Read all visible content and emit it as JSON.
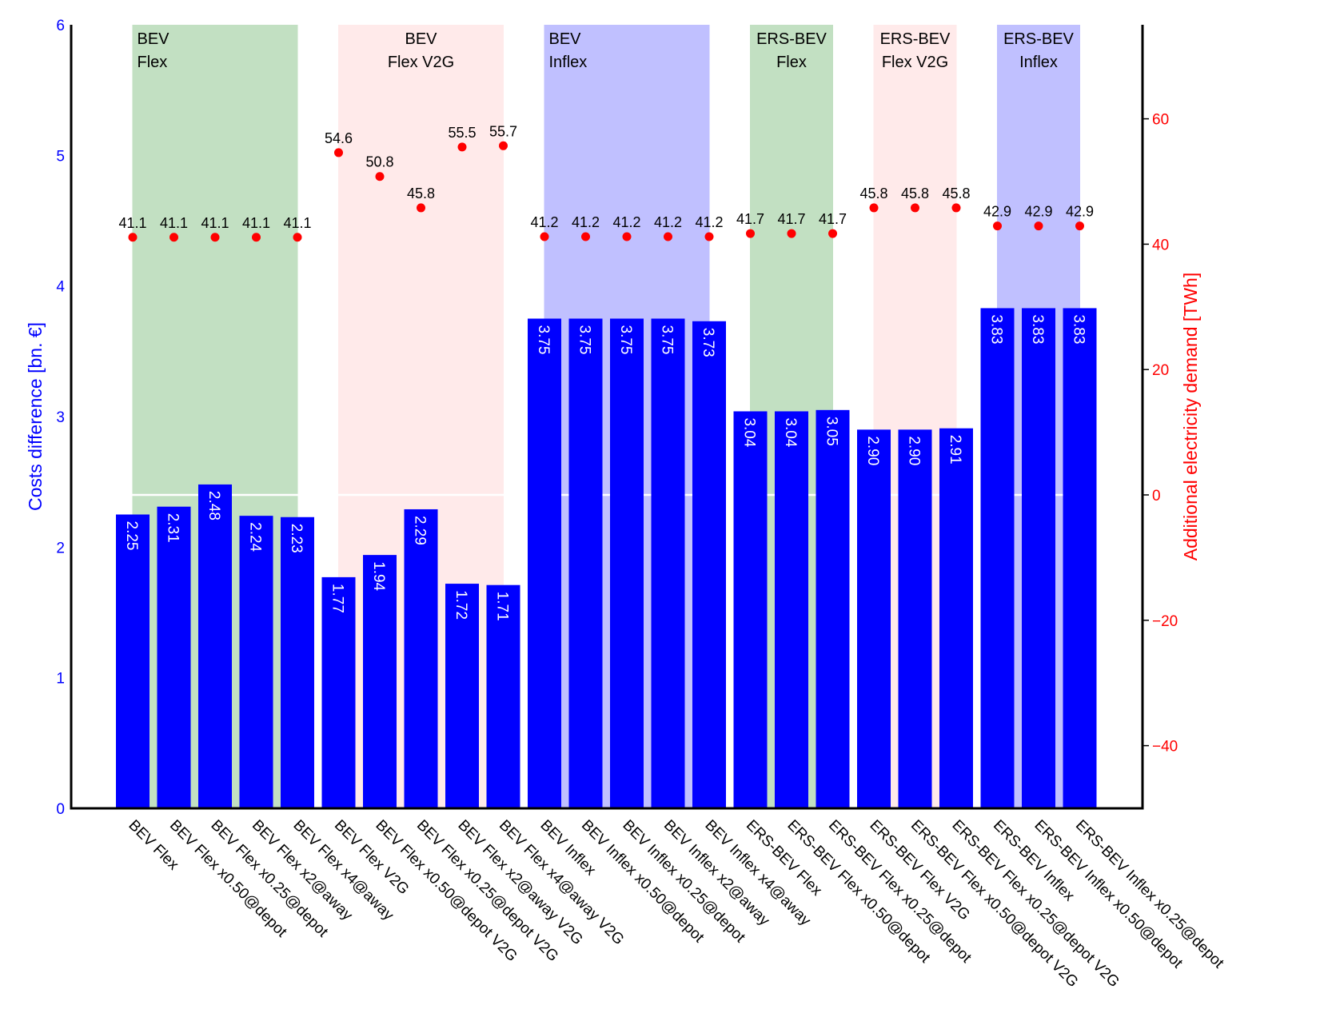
{
  "chart_data": {
    "type": "bar",
    "categories": [
      "BEV Flex",
      "BEV Flex x0.50@depot",
      "BEV Flex x0.25@depot",
      "BEV Flex x2@away",
      "BEV Flex x4@away",
      "BEV Flex V2G",
      "BEV Flex x0.50@depot V2G",
      "BEV Flex x0.25@depot V2G",
      "BEV Flex x2@away V2G",
      "BEV Flex x4@away V2G",
      "BEV Inflex",
      "BEV Inflex x0.50@depot",
      "BEV Inflex x0.25@depot",
      "BEV Inflex x2@away",
      "BEV Inflex x4@away",
      "ERS-BEV Flex",
      "ERS-BEV Flex x0.50@depot",
      "ERS-BEV Flex x0.25@depot",
      "ERS-BEV Flex V2G",
      "ERS-BEV Flex x0.50@depot V2G",
      "ERS-BEV Flex x0.25@depot V2G",
      "ERS-BEV Inflex",
      "ERS-BEV Inflex x0.50@depot",
      "ERS-BEV Inflex x0.25@depot"
    ],
    "series": [
      {
        "name": "Costs difference",
        "axis": "left",
        "color": "#0000ff",
        "kind": "bar",
        "values": [
          2.25,
          2.31,
          2.48,
          2.24,
          2.23,
          1.77,
          1.94,
          2.29,
          1.72,
          1.71,
          3.75,
          3.75,
          3.75,
          3.75,
          3.73,
          3.04,
          3.04,
          3.05,
          2.9,
          2.9,
          2.91,
          3.83,
          3.83,
          3.83
        ],
        "labels": [
          "2.25",
          "2.31",
          "2.48",
          "2.24",
          "2.23",
          "1.77",
          "1.94",
          "2.29",
          "1.72",
          "1.71",
          "3.75",
          "3.75",
          "3.75",
          "3.75",
          "3.73",
          "3.04",
          "3.04",
          "3.05",
          "2.90",
          "2.90",
          "2.91",
          "3.83",
          "3.83",
          "3.83"
        ]
      },
      {
        "name": "Additional electricity demand",
        "axis": "right",
        "color": "#ff0000",
        "kind": "scatter",
        "values": [
          41.1,
          41.1,
          41.1,
          41.1,
          41.1,
          54.6,
          50.8,
          45.8,
          55.5,
          55.7,
          41.2,
          41.2,
          41.2,
          41.2,
          41.2,
          41.7,
          41.7,
          41.7,
          45.8,
          45.8,
          45.8,
          42.9,
          42.9,
          42.9
        ],
        "labels": [
          "41.1",
          "41.1",
          "41.1",
          "41.1",
          "41.1",
          "54.6",
          "50.8",
          "45.8",
          "55.5",
          "55.7",
          "41.2",
          "41.2",
          "41.2",
          "41.2",
          "41.2",
          "41.7",
          "41.7",
          "41.7",
          "45.8",
          "45.8",
          "45.8",
          "42.9",
          "42.9",
          "42.9"
        ]
      }
    ],
    "ylabel": "Costs difference [bn. €]",
    "ylim": [
      0,
      6
    ],
    "yticks": [
      "0",
      "1",
      "2",
      "3",
      "4",
      "5",
      "6"
    ],
    "y2label": "Additional electricity demand [TWh]",
    "y2lim": [
      -50,
      75
    ],
    "y2ticks": [
      "−40",
      "−20",
      "0",
      "20",
      "40",
      "60"
    ],
    "y2tick_values": [
      -40,
      -20,
      0,
      20,
      40,
      60
    ],
    "groups": [
      {
        "line1": "BEV",
        "line2": "Flex",
        "start": 0,
        "end": 4,
        "color": "#c2e0c2",
        "align": "left"
      },
      {
        "line1": "BEV",
        "line2": "Flex V2G",
        "start": 5,
        "end": 9,
        "color": "#ffeaea",
        "align": "center"
      },
      {
        "line1": "BEV",
        "line2": "Inflex",
        "start": 10,
        "end": 14,
        "color": "#c0c0ff",
        "align": "left"
      },
      {
        "line1": "ERS-BEV",
        "line2": "Flex",
        "start": 15,
        "end": 17,
        "color": "#c2e0c2",
        "align": "center"
      },
      {
        "line1": "ERS-BEV",
        "line2": "Flex V2G",
        "start": 18,
        "end": 20,
        "color": "#ffeaea",
        "align": "center"
      },
      {
        "line1": "ERS-BEV",
        "line2": "Inflex",
        "start": 21,
        "end": 23,
        "color": "#c0c0ff",
        "align": "center"
      }
    ],
    "grid": "horizontal line at zero of right axis",
    "legend": "none"
  }
}
